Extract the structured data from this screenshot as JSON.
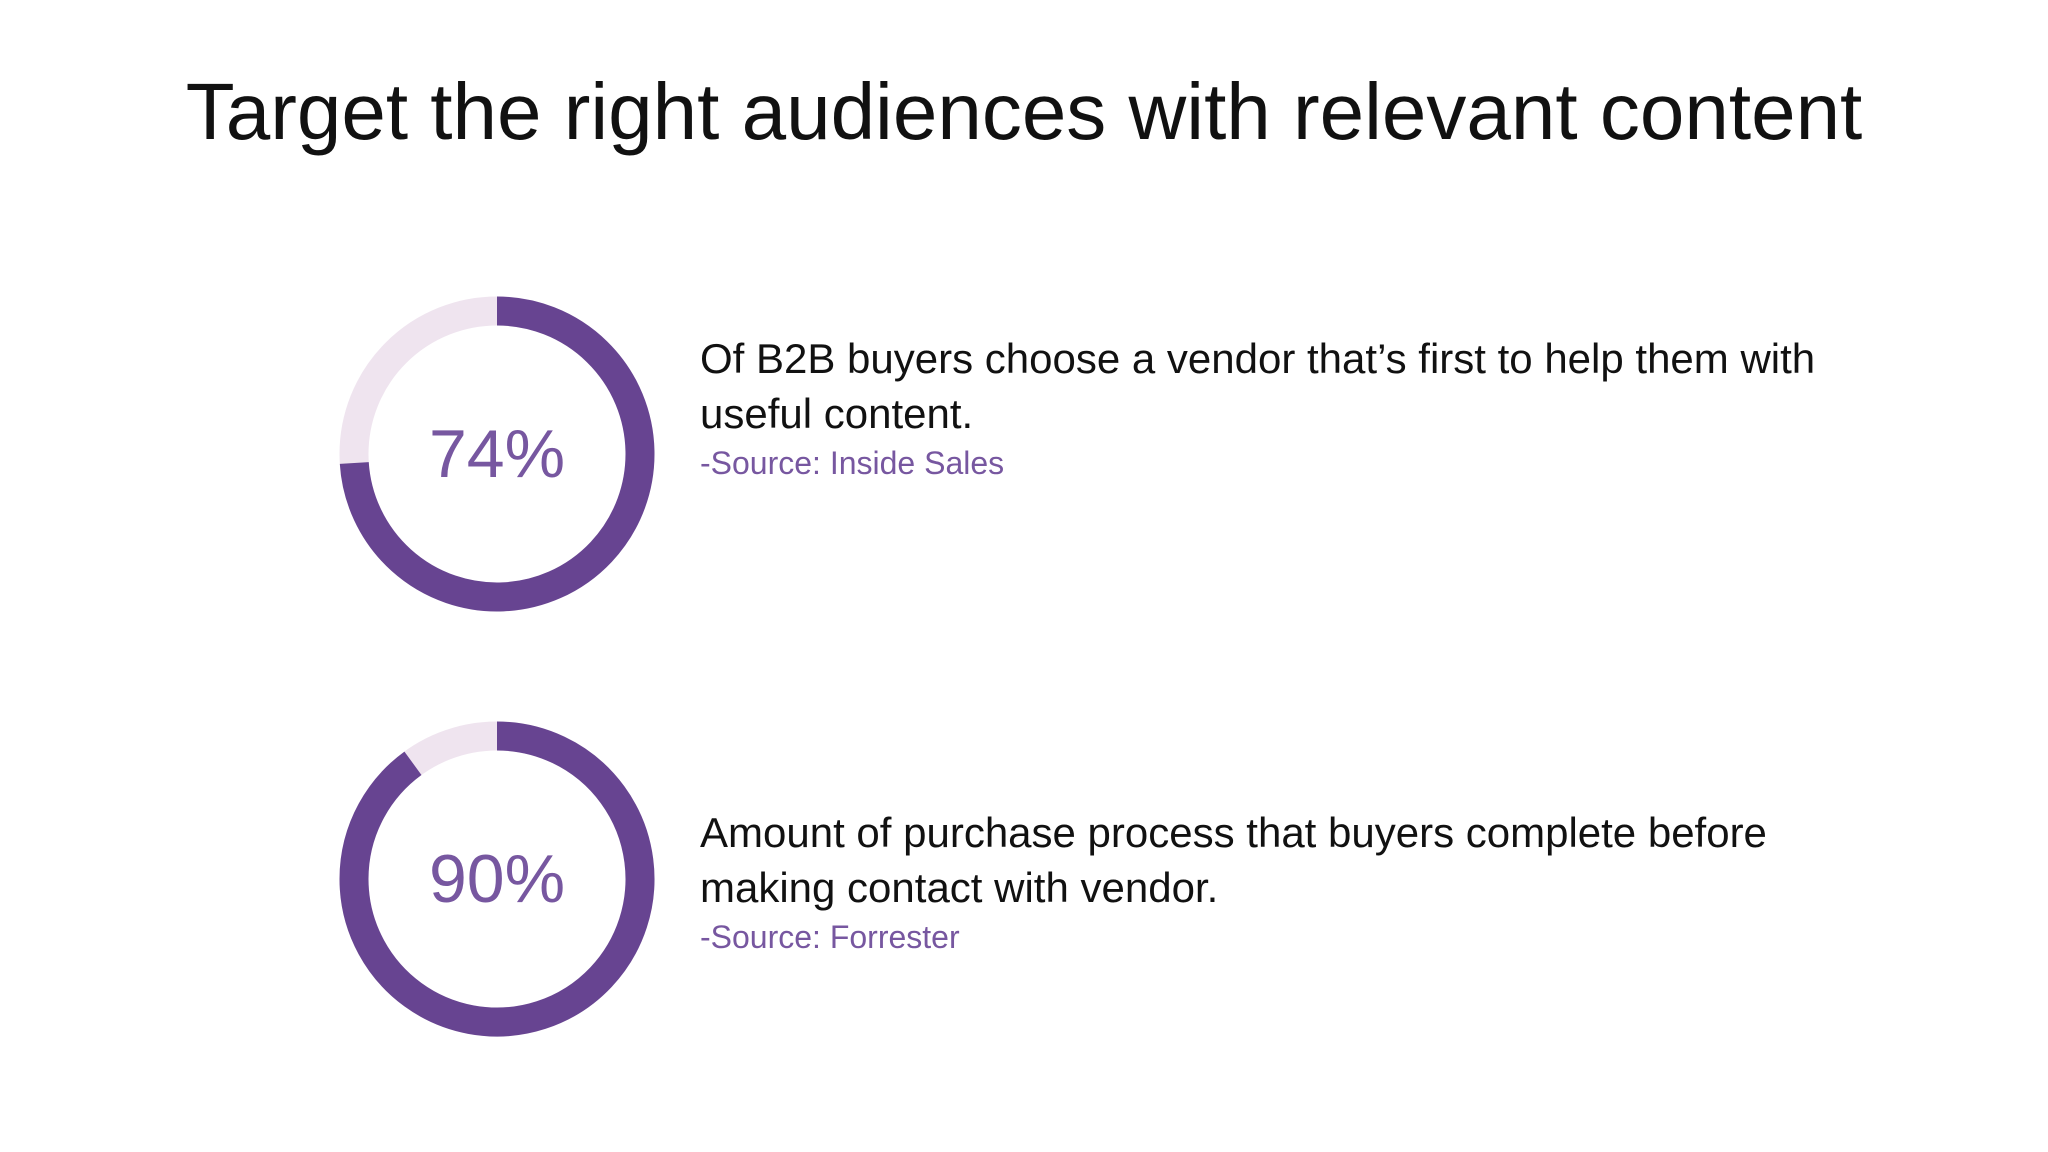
{
  "slide": {
    "title": "Target the right audiences with relevant content"
  },
  "colors": {
    "accent": "#674491",
    "track": "#efe4ef",
    "value_text": "#7757a0",
    "source_text": "#7757a0",
    "body_text": "#111111"
  },
  "stats": [
    {
      "value_label": "74%",
      "description": "Of B2B buyers choose a vendor that’s first to help them with useful content.",
      "source": "-Source: Inside Sales"
    },
    {
      "value_label": "90%",
      "description": "Amount of purchase process that buyers complete before making contact with vendor.",
      "source": "-Source: Forrester"
    }
  ],
  "chart_data": [
    {
      "type": "pie",
      "style": "donut",
      "categories": [
        "filled",
        "remaining"
      ],
      "values": [
        74,
        26
      ],
      "label": "74%"
    },
    {
      "type": "pie",
      "style": "donut",
      "categories": [
        "filled",
        "remaining"
      ],
      "values": [
        90,
        10
      ],
      "label": "90%"
    }
  ]
}
